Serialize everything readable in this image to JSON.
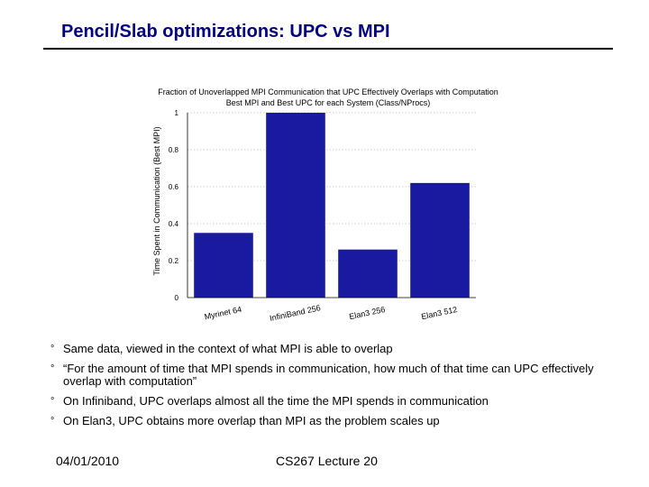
{
  "slide": {
    "title": "Pencil/Slab optimizations: UPC vs MPI"
  },
  "chart_data": {
    "type": "bar",
    "title": "Fraction of Unoverlapped MPI Communication that UPC Effectively Overlaps with Computation",
    "subtitle": "Best MPI and Best UPC for each System (Class/NProcs)",
    "xlabel": "",
    "ylabel": "Time Spent in Communication (Best MPI)",
    "categories": [
      "Myrinet 64",
      "InfiniBand 256",
      "Elan3 256",
      "Elan3 512"
    ],
    "values": [
      0.35,
      1.0,
      0.26,
      0.62
    ],
    "ylim": [
      0,
      1
    ],
    "yticks": [
      "0",
      "0.2",
      "0.4",
      "0.6",
      "0.8",
      "1"
    ],
    "grid": true,
    "bar_color": "#1a1aa0",
    "legend": "none"
  },
  "bullets": [
    "Same data, viewed in the context of what MPI is able to overlap",
    "“For the amount of time that MPI spends in communication, how much of that time can UPC effectively overlap with computation”",
    "On Infiniband, UPC overlaps almost all the time the MPI spends in communication",
    "On Elan3, UPC obtains more overlap than MPI as the problem scales up"
  ],
  "bullet_glyph": "°",
  "footer": {
    "date": "04/01/2010",
    "course": "CS267 Lecture 20"
  }
}
